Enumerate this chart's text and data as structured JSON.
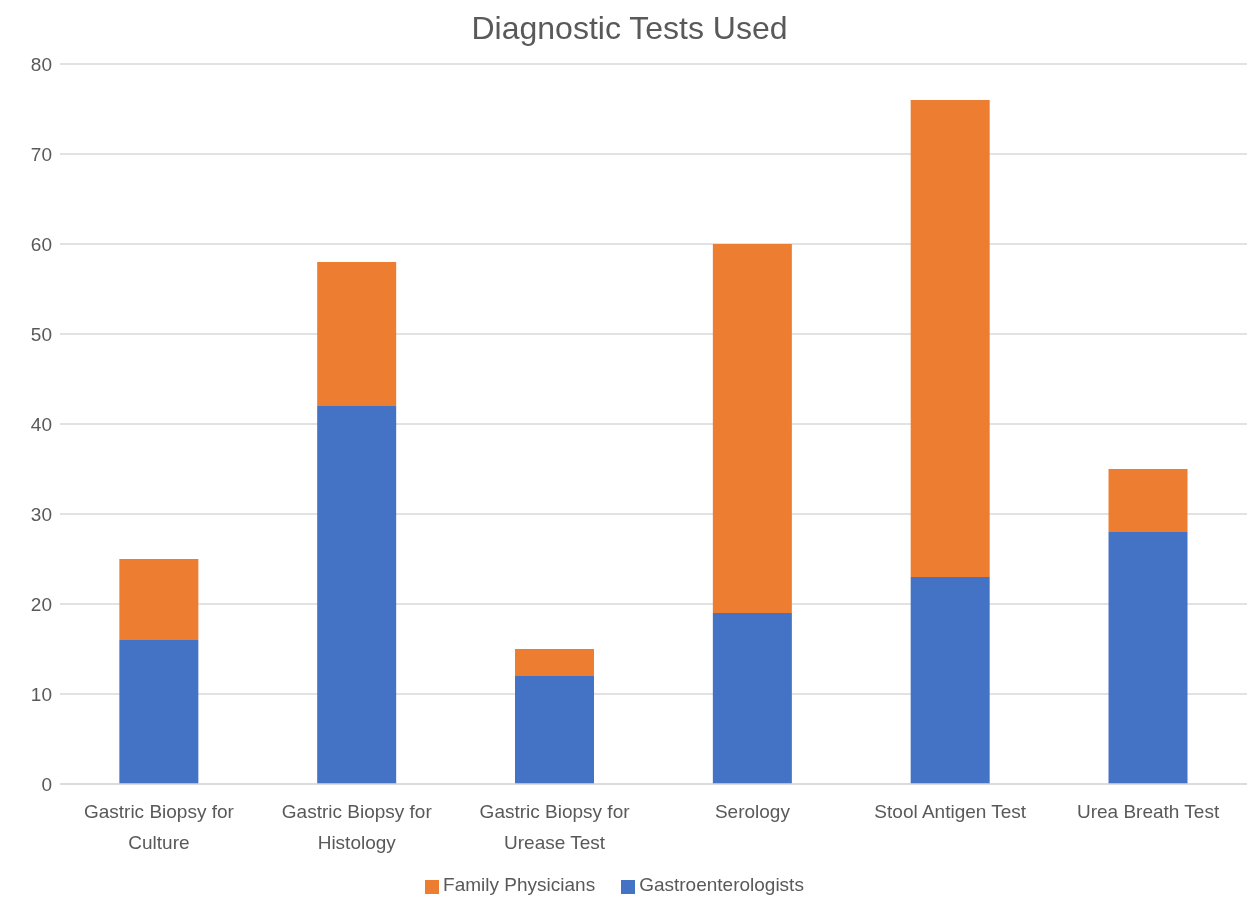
{
  "chart_data": {
    "type": "bar",
    "title": "Diagnostic Tests Used",
    "stacked": true,
    "categories": [
      "Gastric Biopsy for Culture",
      "Gastric Biopsy for Histology",
      "Gastric Biopsy for Urease Test",
      "Serology",
      "Stool Antigen Test",
      "Urea Breath Test"
    ],
    "series": [
      {
        "name": "Gastroenterologists",
        "color": "#4472c4",
        "values": [
          16,
          42,
          12,
          19,
          23,
          28
        ]
      },
      {
        "name": "Family Physicians",
        "color": "#ed7d31",
        "values": [
          9,
          16,
          3,
          41,
          53,
          7
        ]
      }
    ],
    "ylim": [
      0,
      80
    ],
    "yticks": [
      0,
      10,
      20,
      30,
      40,
      50,
      60,
      70,
      80
    ],
    "grid": "y",
    "legend": "bottom"
  }
}
